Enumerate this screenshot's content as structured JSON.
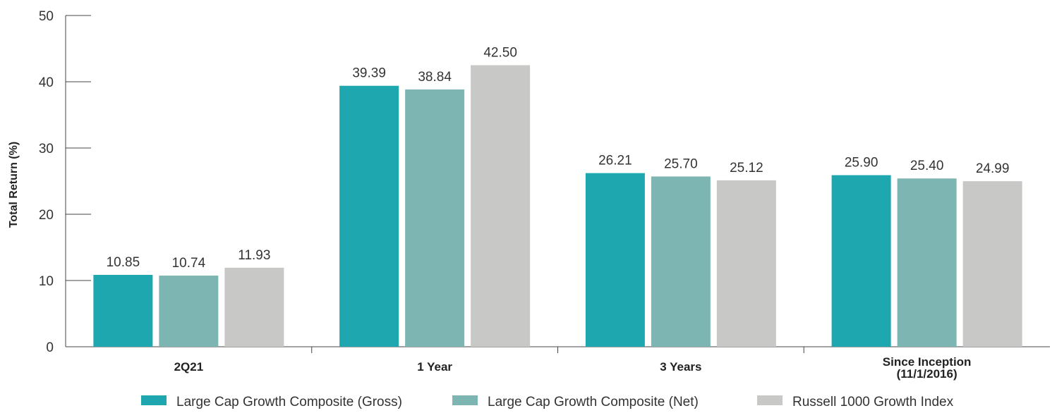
{
  "chart_data": {
    "type": "bar",
    "ylabel": "Total Return (%)",
    "xlabel": "",
    "ylim": [
      0,
      50
    ],
    "yticks": [
      0,
      10,
      20,
      30,
      40,
      50
    ],
    "categories": [
      [
        "2Q21"
      ],
      [
        "1 Year"
      ],
      [
        "3 Years"
      ],
      [
        "Since Inception",
        "(11/1/2016)"
      ]
    ],
    "series": [
      {
        "name": "Large Cap Growth Composite (Gross)",
        "color": "#1fa7b0",
        "values": [
          10.85,
          39.39,
          26.21,
          25.9
        ],
        "labels": [
          "10.85",
          "39.39",
          "26.21",
          "25.90"
        ]
      },
      {
        "name": "Large Cap Growth Composite (Net)",
        "color": "#7db5b2",
        "values": [
          10.74,
          38.84,
          25.7,
          25.4
        ],
        "labels": [
          "10.74",
          "38.84",
          "25.70",
          "25.40"
        ]
      },
      {
        "name": "Russell 1000 Growth Index",
        "color": "#c8c8c6",
        "values": [
          11.93,
          42.5,
          25.12,
          24.99
        ],
        "labels": [
          "11.93",
          "42.50",
          "25.12",
          "24.99"
        ]
      }
    ],
    "grid": false,
    "legend_position": "bottom"
  }
}
